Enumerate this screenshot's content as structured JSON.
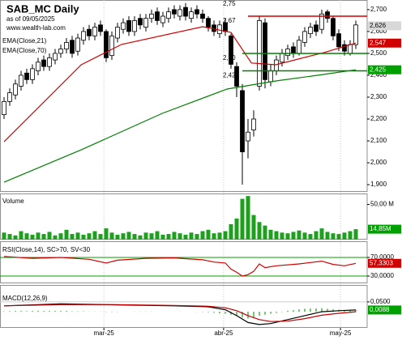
{
  "chart_data": [
    {
      "type": "candlestick",
      "title": "SAB_MC Daily",
      "subtitle": "as of 09/05/2025",
      "source": "www.wealth-lab.com",
      "ylim": [
        1.867,
        2.744
      ],
      "yticks": [
        {
          "value": 1.9,
          "label": "1,900"
        },
        {
          "value": 2.0,
          "label": "2,000"
        },
        {
          "value": 2.1,
          "label": "2,100"
        },
        {
          "value": 2.2,
          "label": "2,200"
        },
        {
          "value": 2.3,
          "label": "2,300"
        },
        {
          "value": 2.4,
          "label": "2,400"
        },
        {
          "value": 2.5,
          "label": "2,500"
        },
        {
          "value": 2.6,
          "label": "2,600"
        },
        {
          "value": 2.7,
          "label": "2,700"
        }
      ],
      "up_color": "#ffffff",
      "down_color": "#000000",
      "open": [
        2.22,
        2.28,
        2.31,
        2.35,
        2.41,
        2.38,
        2.42,
        2.47,
        2.44,
        2.47,
        2.5,
        2.52,
        2.56,
        2.51,
        2.56,
        2.61,
        2.58,
        2.63,
        2.6,
        2.49,
        2.57,
        2.61,
        2.65,
        2.6,
        2.66,
        2.62,
        2.66,
        2.69,
        2.64,
        2.66,
        2.7,
        2.67,
        2.71,
        2.66,
        2.7,
        2.68,
        2.66,
        2.63,
        2.59,
        2.64,
        2.58,
        2.44,
        2.33,
        2.1,
        2.15,
        2.35,
        2.64,
        2.37,
        2.42,
        2.46,
        2.49,
        2.53,
        2.5,
        2.55,
        2.59,
        2.63,
        2.61,
        2.69,
        2.66,
        2.59,
        2.54,
        2.5,
        2.54
      ],
      "high": [
        2.3,
        2.34,
        2.38,
        2.42,
        2.43,
        2.45,
        2.48,
        2.49,
        2.5,
        2.52,
        2.54,
        2.57,
        2.58,
        2.59,
        2.62,
        2.63,
        2.64,
        2.65,
        2.61,
        2.6,
        2.64,
        2.66,
        2.67,
        2.67,
        2.68,
        2.68,
        2.7,
        2.71,
        2.69,
        2.71,
        2.72,
        2.72,
        2.73,
        2.71,
        2.72,
        2.7,
        2.67,
        2.65,
        2.65,
        2.66,
        2.59,
        2.46,
        2.36,
        2.2,
        2.24,
        2.67,
        2.66,
        2.45,
        2.49,
        2.52,
        2.54,
        2.55,
        2.58,
        2.62,
        2.64,
        2.65,
        2.7,
        2.7,
        2.67,
        2.61,
        2.56,
        2.56,
        2.65
      ],
      "low": [
        2.2,
        2.26,
        2.29,
        2.33,
        2.36,
        2.36,
        2.4,
        2.42,
        2.42,
        2.45,
        2.48,
        2.5,
        2.48,
        2.49,
        2.54,
        2.56,
        2.56,
        2.58,
        2.46,
        2.47,
        2.55,
        2.59,
        2.58,
        2.58,
        2.61,
        2.6,
        2.64,
        2.63,
        2.62,
        2.64,
        2.66,
        2.65,
        2.65,
        2.64,
        2.66,
        2.64,
        2.6,
        2.58,
        2.57,
        2.58,
        2.43,
        2.3,
        1.9,
        2.02,
        2.12,
        2.33,
        2.34,
        2.35,
        2.4,
        2.44,
        2.47,
        2.48,
        2.49,
        2.53,
        2.57,
        2.58,
        2.59,
        2.64,
        2.56,
        2.51,
        2.49,
        2.49,
        2.52
      ],
      "close": [
        2.28,
        2.32,
        2.36,
        2.4,
        2.38,
        2.43,
        2.46,
        2.44,
        2.48,
        2.5,
        2.52,
        2.55,
        2.5,
        2.57,
        2.6,
        2.58,
        2.62,
        2.6,
        2.48,
        2.58,
        2.62,
        2.64,
        2.6,
        2.65,
        2.63,
        2.66,
        2.68,
        2.65,
        2.67,
        2.69,
        2.68,
        2.7,
        2.67,
        2.69,
        2.68,
        2.66,
        2.62,
        2.6,
        2.63,
        2.6,
        2.45,
        2.35,
        2.05,
        2.14,
        2.2,
        2.65,
        2.38,
        2.42,
        2.47,
        2.5,
        2.52,
        2.5,
        2.56,
        2.6,
        2.62,
        2.6,
        2.68,
        2.66,
        2.58,
        2.53,
        2.51,
        2.54,
        2.63
      ],
      "series": [
        {
          "name": "EMA(Close,21)",
          "color": "#d00000",
          "x": [
            0,
            13.6,
            20.7,
            35,
            40,
            43.6,
            47.9,
            56.4,
            62
          ],
          "values": [
            2.096,
            2.448,
            2.541,
            2.622,
            2.596,
            2.456,
            2.448,
            2.504,
            2.547
          ]
        },
        {
          "name": "EMA(Close,70)",
          "color": "#008000",
          "x": [
            0,
            13.6,
            27.9,
            39.3,
            47.9,
            56.4,
            62
          ],
          "values": [
            1.911,
            2.059,
            2.226,
            2.337,
            2.374,
            2.404,
            2.425
          ]
        }
      ],
      "levels": [
        {
          "value": 2.75,
          "label": "2,75",
          "color": "#d00000",
          "start": 43
        },
        {
          "value": 2.67,
          "label": "2,67",
          "color": "#d00000",
          "start": 43
        },
        {
          "value": 2.5,
          "label": "2,50",
          "color": "#008000",
          "start": 42
        },
        {
          "value": 2.42,
          "label": "2,42",
          "color": "#008000",
          "start": 42
        }
      ],
      "value_boxes": [
        {
          "value": 2.626,
          "label": "2,626",
          "color": "#d8d8d8",
          "text_color": "#000000"
        },
        {
          "value": 2.547,
          "label": "2,547",
          "color": "#d00000",
          "text_color": "#ffffff"
        },
        {
          "value": 2.425,
          "label": "2,425",
          "color": "#00a000",
          "text_color": "#ffffff"
        }
      ]
    },
    {
      "type": "bar",
      "title": "Volume",
      "color": "#1ea01e",
      "ylim": [
        0,
        65.6
      ],
      "yticks": [
        {
          "value": 50,
          "label": "50,00 M"
        }
      ],
      "values": [
        10,
        8,
        6,
        12,
        9,
        7,
        10,
        8,
        11,
        6,
        9,
        14,
        8,
        10,
        7,
        9,
        12,
        8,
        16,
        10,
        7,
        9,
        11,
        8,
        6,
        10,
        9,
        12,
        7,
        8,
        11,
        9,
        7,
        10,
        8,
        12,
        14,
        9,
        10,
        12,
        22,
        30,
        58,
        62,
        35,
        25,
        20,
        14,
        12,
        10,
        9,
        11,
        13,
        10,
        8,
        12,
        16,
        11,
        9,
        8,
        10,
        12,
        14.85
      ],
      "value_boxes": [
        {
          "value": 14.85,
          "label": "14,85M",
          "color": "#00a000",
          "text_color": "#ffffff"
        }
      ]
    },
    {
      "type": "line",
      "title": "RSI(Close,14), SC>70, SV<30",
      "ylim": [
        14.3,
        104.8
      ],
      "yticks": [
        {
          "value": 30,
          "label": "30,0000"
        },
        {
          "value": 70,
          "label": "70,0000"
        }
      ],
      "grid": true,
      "grid_color": "#00a000",
      "series": [
        {
          "color": "#d00000",
          "x": [
            0,
            5,
            10,
            15,
            18,
            20,
            25,
            30,
            35,
            37,
            39,
            40,
            41,
            42,
            43,
            44,
            45,
            46,
            48,
            52,
            56,
            58,
            60,
            62
          ],
          "values": [
            72,
            68,
            70,
            66,
            58,
            64,
            68,
            69,
            65,
            60,
            58,
            45,
            38,
            30,
            33,
            40,
            56,
            48,
            52,
            56,
            62,
            55,
            52,
            57.3303
          ]
        }
      ],
      "value_boxes": [
        {
          "value": 57.3303,
          "label": "57,3303",
          "color": "#d00000",
          "text_color": "#ffffff"
        }
      ]
    },
    {
      "type": "macd",
      "title": "MACD(12,26,9)",
      "ylim": [
        -0.082,
        0.136
      ],
      "yticks": [
        {
          "value": 0.05,
          "label": "0,0500"
        }
      ],
      "histogram_color": "#1ea01e",
      "histogram": [
        0.002,
        0.003,
        0.004,
        0.004,
        0.003,
        0.004,
        0.005,
        0.004,
        0.004,
        0.004,
        0.004,
        0.004,
        0.002,
        0.002,
        0.002,
        0.001,
        0.001,
        0.001,
        -0.002,
        -0.002,
        -0.001,
        0,
        0,
        0.001,
        0.001,
        0.001,
        0.001,
        0,
        0,
        0,
        0,
        0.001,
        0,
        0,
        -0.001,
        -0.002,
        -0.003,
        -0.005,
        -0.008,
        -0.01,
        -0.015,
        -0.022,
        -0.03,
        -0.035,
        -0.028,
        -0.02,
        -0.015,
        -0.01,
        -0.006,
        -0.002,
        0.005,
        0.008,
        0.012,
        0.015,
        0.016,
        0.017,
        0.018,
        0.015,
        0.012,
        0.01,
        0.008,
        0.009,
        0.0088
      ],
      "series": [
        {
          "color": "#000000",
          "x": [
            0,
            10,
            20,
            30,
            36,
            39,
            41,
            43,
            45,
            47,
            50,
            53,
            56,
            59,
            62
          ],
          "values": [
            0.03,
            0.04,
            0.035,
            0.03,
            0.025,
            0.01,
            -0.02,
            -0.055,
            -0.065,
            -0.06,
            -0.04,
            -0.02,
            0.0,
            0.005,
            0.0088
          ]
        },
        {
          "color": "#c00000",
          "x": [
            0,
            10,
            20,
            30,
            36,
            39,
            41,
            43,
            45,
            47,
            50,
            53,
            56,
            59,
            62
          ],
          "values": [
            0.03,
            0.036,
            0.036,
            0.032,
            0.028,
            0.02,
            0.005,
            -0.02,
            -0.04,
            -0.05,
            -0.048,
            -0.035,
            -0.018,
            -0.008,
            0.0
          ]
        }
      ],
      "value_boxes": [
        {
          "value": 0.0088,
          "label": "0,0088",
          "color": "#00a000",
          "text_color": "#ffffff"
        }
      ],
      "xticks": [
        {
          "value": 17.6,
          "label": "mar-25"
        },
        {
          "value": 38.7,
          "label": "abr-25"
        },
        {
          "value": 59.3,
          "label": "may-25"
        }
      ],
      "grid": true
    }
  ]
}
